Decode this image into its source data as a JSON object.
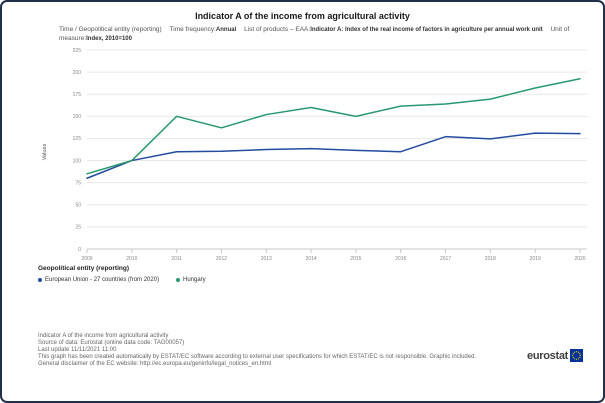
{
  "header": {
    "title": "Indicator A of the income from agricultural activity",
    "subtitle": {
      "label1": "Time / Geopolitical entity (reporting)",
      "label2": "Time frequency:",
      "value2": "Annual",
      "label3": "List of products – EAA:",
      "value3": "Indicator A: Index of the real income of factors in agriculture per annual work unit",
      "label4": "Unit of measure:",
      "value4": "Index, 2010=100"
    }
  },
  "chart_data": {
    "type": "line",
    "title": "Indicator A of the income from agricultural activity",
    "xlabel": "",
    "ylabel": "Values",
    "x": [
      2009,
      2010,
      2011,
      2012,
      2013,
      2014,
      2015,
      2016,
      2017,
      2018,
      2019,
      2020
    ],
    "series": [
      {
        "name": "European Union - 27 countries (from 2020)",
        "color": "#234ba0",
        "values": [
          80,
          100,
          110,
          110.5,
          112.5,
          113.5,
          111.5,
          110,
          127,
          124.5,
          131,
          130.5
        ]
      },
      {
        "name": "Hungary",
        "color": "#28996d",
        "values": [
          85,
          100,
          150,
          137,
          152,
          160,
          150,
          161.5,
          164,
          169.5,
          182,
          192.5
        ]
      }
    ],
    "ylim": [
      0,
      225
    ],
    "yticks": [
      0,
      25,
      50,
      75,
      100,
      125,
      150,
      175,
      200,
      225
    ],
    "grid": true,
    "legend_position": "bottom"
  },
  "legend": {
    "heading": "Geopolitical entity (reporting)"
  },
  "footer": {
    "lines": [
      "Indicator A of the income from agricultural activity",
      "Source of data: Eurostat (online data code: TAG00057)",
      "Last update 11/11/2021 11:00",
      "This graph has been created automatically by ESTAT/EC software according to external user specifications for which ESTAT/EC is not responsible. Graphic included.",
      "General disclaimer of the EC website: http://ec.europa.eu/geninfo/legal_notices_en.html"
    ]
  },
  "logo": {
    "text": "eurostat"
  },
  "colors": {
    "grid": "#e8e8e8",
    "axis": "#c8c8c8",
    "tick_text": "#888888"
  }
}
